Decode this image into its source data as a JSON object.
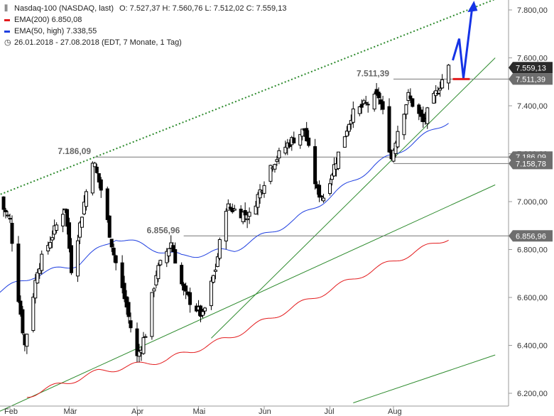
{
  "legend": {
    "title": "Nasdaq-100 (NASDAQ, last)",
    "ohlc": "O: 7.527,37  H: 7.560,76  L: 7.512,02  C: 7.559,13",
    "ema200": "EMA(200)  6.850,08",
    "ema50": "EMA(50, high)  7.338,55",
    "period": "26.01.2018 - 27.08.2018   (EDT, 7 Monate, 1 Tag)"
  },
  "colors": {
    "ema200": "#e31a1c",
    "ema50": "#1f3fe0",
    "trend": "#2e8b2e",
    "projection": "#1533e6",
    "support_marker": "#e31a1c",
    "level_box": "#6e6e6e",
    "last_box": "#2b2b2b",
    "candle": "#000000"
  },
  "chart_data": {
    "type": "candlestick",
    "title": "Nasdaq-100 (NASDAQ, last)",
    "x_labels": [
      "Feb",
      "Mär",
      "Apr",
      "Mai",
      "Jun",
      "Jul",
      "Aug"
    ],
    "y_ticks": [
      "6.200,00",
      "6.400,00",
      "6.600,00",
      "6.800,00",
      "7.000,00",
      "7.200,00",
      "7.400,00",
      "7.600,00",
      "7.800,00"
    ],
    "y_tick_values": [
      6200,
      6400,
      6600,
      6800,
      7000,
      7200,
      7400,
      7600,
      7800
    ],
    "ylim": [
      6165,
      7845
    ],
    "last_close": 7559.13,
    "horizontal_levels": [
      {
        "label": "7.511,39",
        "value": 7511.39,
        "box": "7.511,39",
        "annotation": "7.511,39"
      },
      {
        "label": "7.186,09",
        "value": 7186.09,
        "box": "7.186,09",
        "annotation": "7.186,09"
      },
      {
        "label": "7.158,78",
        "value": 7158.78,
        "box": "7.158,78",
        "annotation": ""
      },
      {
        "label": "6.856,96",
        "value": 6856.96,
        "box": "6.856,96",
        "annotation": "6.856,96"
      }
    ],
    "last_box": "7.559,13",
    "ohlc_knots": [
      {
        "date": "2018-01-26",
        "close": 7020
      },
      {
        "date": "2018-02-01",
        "close": 6920
      },
      {
        "date": "2018-02-05",
        "close": 6600
      },
      {
        "date": "2018-02-08",
        "close": 6400
      },
      {
        "date": "2018-02-14",
        "close": 6720
      },
      {
        "date": "2018-02-21",
        "close": 6860
      },
      {
        "date": "2018-02-27",
        "close": 6980
      },
      {
        "date": "2018-03-02",
        "close": 6720
      },
      {
        "date": "2018-03-12",
        "close": 7180
      },
      {
        "date": "2018-03-16",
        "close": 7050
      },
      {
        "date": "2018-03-22",
        "close": 6780
      },
      {
        "date": "2018-03-28",
        "close": 6560
      },
      {
        "date": "2018-04-02",
        "close": 6350
      },
      {
        "date": "2018-04-06",
        "close": 6450
      },
      {
        "date": "2018-04-11",
        "close": 6700
      },
      {
        "date": "2018-04-18",
        "close": 6830
      },
      {
        "date": "2018-04-24",
        "close": 6620
      },
      {
        "date": "2018-05-03",
        "close": 6520
      },
      {
        "date": "2018-05-09",
        "close": 6720
      },
      {
        "date": "2018-05-14",
        "close": 6980
      },
      {
        "date": "2018-05-25",
        "close": 6940
      },
      {
        "date": "2018-06-04",
        "close": 7150
      },
      {
        "date": "2018-06-12",
        "close": 7240
      },
      {
        "date": "2018-06-20",
        "close": 7300
      },
      {
        "date": "2018-06-26",
        "close": 7040
      },
      {
        "date": "2018-06-29",
        "close": 7020
      },
      {
        "date": "2018-07-06",
        "close": 7200
      },
      {
        "date": "2018-07-12",
        "close": 7360
      },
      {
        "date": "2018-07-18",
        "close": 7400
      },
      {
        "date": "2018-07-25",
        "close": 7440
      },
      {
        "date": "2018-07-27",
        "close": 7370
      },
      {
        "date": "2018-07-31",
        "close": 7180
      },
      {
        "date": "2018-08-03",
        "close": 7300
      },
      {
        "date": "2018-08-08",
        "close": 7440
      },
      {
        "date": "2018-08-15",
        "close": 7330
      },
      {
        "date": "2018-08-21",
        "close": 7450
      },
      {
        "date": "2018-08-24",
        "close": 7510
      },
      {
        "date": "2018-08-27",
        "close": 7559.13
      }
    ],
    "ema200_knots": [
      {
        "date": "2018-02-09",
        "value": 6190
      },
      {
        "date": "2018-03-15",
        "value": 6290
      },
      {
        "date": "2018-04-16",
        "value": 6340
      },
      {
        "date": "2018-05-15",
        "value": 6430
      },
      {
        "date": "2018-06-15",
        "value": 6560
      },
      {
        "date": "2018-07-16",
        "value": 6690
      },
      {
        "date": "2018-08-27",
        "value": 6850
      }
    ],
    "ema50_knots": [
      {
        "date": "2018-01-26",
        "value": 6620
      },
      {
        "date": "2018-02-12",
        "value": 6690
      },
      {
        "date": "2018-03-05",
        "value": 6740
      },
      {
        "date": "2018-03-23",
        "value": 6850
      },
      {
        "date": "2018-04-23",
        "value": 6770
      },
      {
        "date": "2018-05-18",
        "value": 6800
      },
      {
        "date": "2018-06-15",
        "value": 6920
      },
      {
        "date": "2018-07-02",
        "value": 7020
      },
      {
        "date": "2018-07-23",
        "value": 7150
      },
      {
        "date": "2018-08-13",
        "value": 7260
      },
      {
        "date": "2018-08-27",
        "value": 7338
      }
    ]
  }
}
